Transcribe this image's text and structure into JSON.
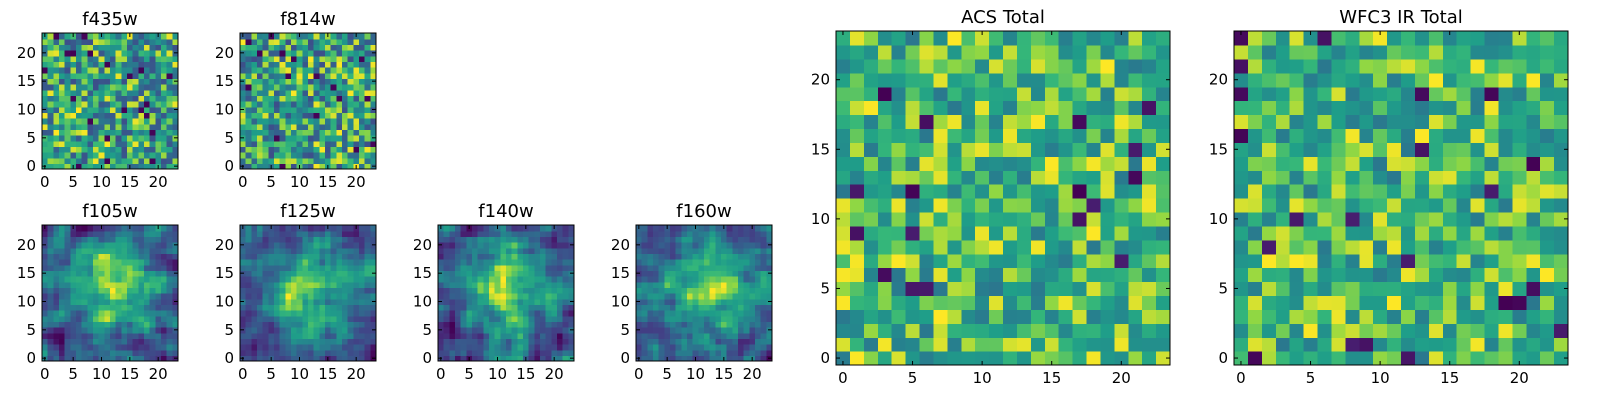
{
  "figure": {
    "background": "#ffffff"
  },
  "chart_data": [
    {
      "type": "heatmap",
      "title": "f435w",
      "grid": false,
      "shape": [
        24,
        24
      ],
      "xlim": [
        -0.5,
        23.5
      ],
      "ylim": [
        -0.5,
        23.5
      ],
      "origin": "lower",
      "colormap": "viridis",
      "xticks": [
        0,
        5,
        10,
        15,
        20
      ],
      "xtick_labels": [
        "0",
        "5",
        "10",
        "15",
        "20"
      ],
      "yticks": [
        0,
        5,
        10,
        15,
        20
      ],
      "ytick_labels": [
        "0",
        "5",
        "10",
        "15",
        "20"
      ],
      "texture": "noisy",
      "seed": 11
    },
    {
      "type": "heatmap",
      "title": "f814w",
      "grid": false,
      "shape": [
        24,
        24
      ],
      "xlim": [
        -0.5,
        23.5
      ],
      "ylim": [
        -0.5,
        23.5
      ],
      "origin": "lower",
      "colormap": "viridis",
      "xticks": [
        0,
        5,
        10,
        15,
        20
      ],
      "xtick_labels": [
        "0",
        "5",
        "10",
        "15",
        "20"
      ],
      "yticks": [
        0,
        5,
        10,
        15,
        20
      ],
      "ytick_labels": [
        "0",
        "5",
        "10",
        "15",
        "20"
      ],
      "texture": "noisy",
      "seed": 23
    },
    {
      "type": "heatmap",
      "title": "f105w",
      "grid": false,
      "shape": [
        24,
        24
      ],
      "xlim": [
        -0.5,
        23.5
      ],
      "ylim": [
        -0.5,
        23.5
      ],
      "origin": "lower",
      "colormap": "viridis",
      "xticks": [
        0,
        5,
        10,
        15,
        20
      ],
      "xtick_labels": [
        "0",
        "5",
        "10",
        "15",
        "20"
      ],
      "yticks": [
        0,
        5,
        10,
        15,
        20
      ],
      "ytick_labels": [
        "0",
        "5",
        "10",
        "15",
        "20"
      ],
      "texture": "smooth",
      "seed": 37
    },
    {
      "type": "heatmap",
      "title": "f125w",
      "grid": false,
      "shape": [
        24,
        24
      ],
      "xlim": [
        -0.5,
        23.5
      ],
      "ylim": [
        -0.5,
        23.5
      ],
      "origin": "lower",
      "colormap": "viridis",
      "xticks": [
        0,
        5,
        10,
        15,
        20
      ],
      "xtick_labels": [
        "0",
        "5",
        "10",
        "15",
        "20"
      ],
      "yticks": [
        0,
        5,
        10,
        15,
        20
      ],
      "ytick_labels": [
        "0",
        "5",
        "10",
        "15",
        "20"
      ],
      "texture": "smooth",
      "seed": 41
    },
    {
      "type": "heatmap",
      "title": "f140w",
      "grid": false,
      "shape": [
        24,
        24
      ],
      "xlim": [
        -0.5,
        23.5
      ],
      "ylim": [
        -0.5,
        23.5
      ],
      "origin": "lower",
      "colormap": "viridis",
      "xticks": [
        0,
        5,
        10,
        15,
        20
      ],
      "xtick_labels": [
        "0",
        "5",
        "10",
        "15",
        "20"
      ],
      "yticks": [
        0,
        5,
        10,
        15,
        20
      ],
      "ytick_labels": [
        "0",
        "5",
        "10",
        "15",
        "20"
      ],
      "texture": "smooth",
      "seed": 53
    },
    {
      "type": "heatmap",
      "title": "f160w",
      "grid": false,
      "shape": [
        24,
        24
      ],
      "xlim": [
        -0.5,
        23.5
      ],
      "ylim": [
        -0.5,
        23.5
      ],
      "origin": "lower",
      "colormap": "viridis",
      "xticks": [
        0,
        5,
        10,
        15,
        20
      ],
      "xtick_labels": [
        "0",
        "5",
        "10",
        "15",
        "20"
      ],
      "yticks": [
        0,
        5,
        10,
        15,
        20
      ],
      "ytick_labels": [
        "0",
        "5",
        "10",
        "15",
        "20"
      ],
      "texture": "smooth",
      "seed": 67
    },
    {
      "type": "heatmap",
      "title": "ACS Total",
      "grid": false,
      "shape": [
        24,
        24
      ],
      "xlim": [
        -0.5,
        23.5
      ],
      "ylim": [
        -0.5,
        23.5
      ],
      "origin": "lower",
      "colormap": "viridis",
      "xticks": [
        0,
        5,
        10,
        15,
        20
      ],
      "xtick_labels": [
        "0",
        "5",
        "10",
        "15",
        "20"
      ],
      "yticks": [
        0,
        5,
        10,
        15,
        20
      ],
      "ytick_labels": [
        "0",
        "5",
        "10",
        "15",
        "20"
      ],
      "texture": "total",
      "seed": 79
    },
    {
      "type": "heatmap",
      "title": "WFC3 IR Total",
      "grid": false,
      "shape": [
        24,
        24
      ],
      "xlim": [
        -0.5,
        23.5
      ],
      "ylim": [
        -0.5,
        23.5
      ],
      "origin": "lower",
      "colormap": "viridis",
      "xticks": [
        0,
        5,
        10,
        15,
        20
      ],
      "xtick_labels": [
        "0",
        "5",
        "10",
        "15",
        "20"
      ],
      "yticks": [
        0,
        5,
        10,
        15,
        20
      ],
      "ytick_labels": [
        "0",
        "5",
        "10",
        "15",
        "20"
      ],
      "texture": "total",
      "seed": 97
    }
  ]
}
